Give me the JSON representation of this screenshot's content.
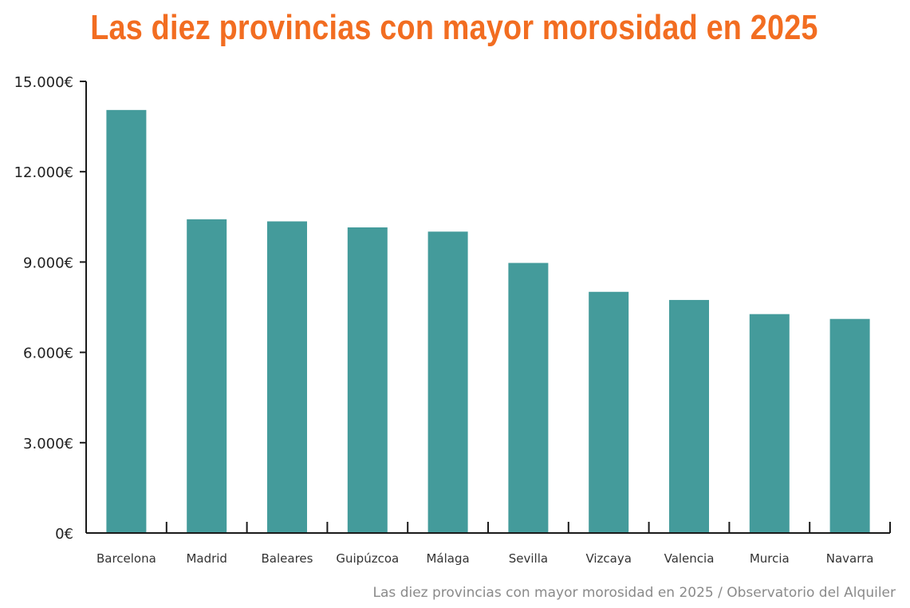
{
  "title": "Las diez provincias con mayor morosidad en 2025",
  "caption": "Las diez provincias con mayor morosidad en 2025 / Observatorio del Alquiler",
  "colors": {
    "title": "#f26d21",
    "bar": "#449b9b",
    "axis": "#1a1a1a"
  },
  "chart_data": {
    "type": "bar",
    "title": "Las diez provincias con mayor morosidad en 2025",
    "xlabel": "",
    "ylabel": "",
    "ylim": [
      0,
      15000
    ],
    "grid": false,
    "categories": [
      "Barcelona",
      "Madrid",
      "Baleares",
      "Guipúzcoa",
      "Málaga",
      "Sevilla",
      "Vizcaya",
      "Valencia",
      "Murcia",
      "Navarra"
    ],
    "values": [
      14050,
      10420,
      10350,
      10150,
      10010,
      8970,
      8010,
      7740,
      7270,
      7110
    ],
    "y_ticks": [
      {
        "value": 0,
        "label": "0€"
      },
      {
        "value": 3000,
        "label": "3.000€"
      },
      {
        "value": 6000,
        "label": "6.000€"
      },
      {
        "value": 9000,
        "label": "9.000€"
      },
      {
        "value": 12000,
        "label": "12.000€"
      },
      {
        "value": 15000,
        "label": "15.000€"
      }
    ]
  }
}
